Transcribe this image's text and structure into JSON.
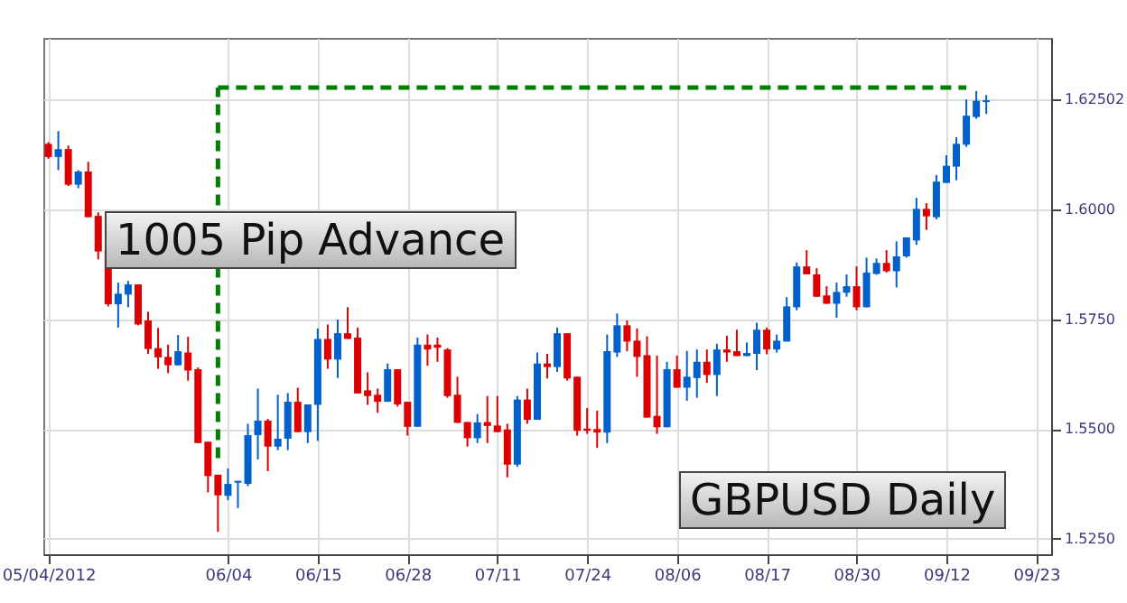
{
  "chart_data": {
    "type": "candlestick",
    "categories": [
      "05/04/2012",
      null,
      null,
      null,
      null,
      null,
      null,
      null,
      null,
      null,
      null,
      null,
      null,
      null,
      null,
      null,
      null,
      null,
      "06/04",
      null,
      null,
      null,
      null,
      null,
      null,
      null,
      null,
      "06/15",
      null,
      null,
      null,
      null,
      null,
      null,
      null,
      null,
      "06/28",
      null,
      null,
      null,
      null,
      null,
      null,
      null,
      null,
      "07/11",
      null,
      null,
      null,
      null,
      null,
      null,
      null,
      null,
      "07/24",
      null,
      null,
      null,
      null,
      null,
      null,
      null,
      null,
      "08/06",
      null,
      null,
      null,
      null,
      null,
      null,
      null,
      null,
      "08/17",
      null,
      null,
      null,
      null,
      null,
      null,
      null,
      null,
      "08/30",
      null,
      null,
      null,
      null,
      null,
      null,
      null,
      null,
      "09/12",
      null,
      null,
      null,
      null,
      null,
      null,
      null,
      null,
      "09/23",
      null
    ],
    "ohlc": [
      [
        1.6149,
        1.6153,
        1.6115,
        1.6119
      ],
      [
        1.6119,
        1.6178,
        1.6089,
        1.6137
      ],
      [
        1.6137,
        1.6145,
        1.6053,
        1.6056
      ],
      [
        1.6056,
        1.6089,
        1.6048,
        1.6086
      ],
      [
        1.6086,
        1.6108,
        1.5982,
        1.5982
      ],
      [
        1.5985,
        1.5993,
        1.5886,
        1.5904
      ],
      [
        1.5907,
        1.5907,
        1.5779,
        1.5784
      ],
      [
        1.5784,
        1.5833,
        1.5731,
        1.5808
      ],
      [
        1.5806,
        1.5837,
        1.5777,
        1.5829
      ],
      [
        1.5829,
        1.5829,
        1.5736,
        1.5738
      ],
      [
        1.5747,
        1.5767,
        1.5671,
        1.5682
      ],
      [
        1.5684,
        1.573,
        1.5637,
        1.5663
      ],
      [
        1.5664,
        1.5692,
        1.5627,
        1.5645
      ],
      [
        1.5645,
        1.5714,
        1.5645,
        1.5677
      ],
      [
        1.5674,
        1.571,
        1.561,
        1.5633
      ],
      [
        1.5636,
        1.564,
        1.5468,
        1.5468
      ],
      [
        1.5471,
        1.5471,
        1.5356,
        1.5393
      ],
      [
        1.5396,
        1.5396,
        1.5266,
        1.5349
      ],
      [
        1.5348,
        1.541,
        1.5338,
        1.5375
      ],
      [
        1.5378,
        1.5382,
        1.532,
        1.5382
      ],
      [
        1.5375,
        1.5512,
        1.537,
        1.5486
      ],
      [
        1.5486,
        1.5592,
        1.5431,
        1.5519
      ],
      [
        1.5519,
        1.5523,
        1.5404,
        1.546
      ],
      [
        1.546,
        1.5578,
        1.5452,
        1.5478
      ],
      [
        1.5478,
        1.5582,
        1.5452,
        1.5562
      ],
      [
        1.5562,
        1.5594,
        1.5493,
        1.5493
      ],
      [
        1.5493,
        1.5556,
        1.5468,
        1.5556
      ],
      [
        1.5555,
        1.5729,
        1.5473,
        1.5705
      ],
      [
        1.5705,
        1.5738,
        1.5637,
        1.5658
      ],
      [
        1.5658,
        1.5749,
        1.5616,
        1.5718
      ],
      [
        1.5718,
        1.5777,
        1.5705,
        1.5705
      ],
      [
        1.5708,
        1.5731,
        1.5581,
        1.5581
      ],
      [
        1.5588,
        1.5629,
        1.5555,
        1.5575
      ],
      [
        1.5578,
        1.5592,
        1.5537,
        1.5562
      ],
      [
        1.5562,
        1.5649,
        1.5562,
        1.5636
      ],
      [
        1.5636,
        1.5636,
        1.5551,
        1.5556
      ],
      [
        1.5562,
        1.5562,
        1.5485,
        1.5505
      ],
      [
        1.5505,
        1.5708,
        1.5505,
        1.5692
      ],
      [
        1.5692,
        1.5715,
        1.5644,
        1.5681
      ],
      [
        1.5692,
        1.5708,
        1.5653,
        1.5685
      ],
      [
        1.5681,
        1.5684,
        1.5571,
        1.5575
      ],
      [
        1.5578,
        1.5619,
        1.5514,
        1.5514
      ],
      [
        1.5516,
        1.5516,
        1.546,
        1.5479
      ],
      [
        1.5479,
        1.5534,
        1.5468,
        1.5515
      ],
      [
        1.5516,
        1.5575,
        1.5468,
        1.5507
      ],
      [
        1.5508,
        1.5575,
        1.5493,
        1.5493
      ],
      [
        1.5499,
        1.5512,
        1.539,
        1.5419
      ],
      [
        1.5419,
        1.5575,
        1.5414,
        1.5567
      ],
      [
        1.5567,
        1.5592,
        1.5512,
        1.5521
      ],
      [
        1.5521,
        1.5674,
        1.5521,
        1.5649
      ],
      [
        1.5649,
        1.5671,
        1.5615,
        1.5641
      ],
      [
        1.5641,
        1.5731,
        1.563,
        1.5718
      ],
      [
        1.5718,
        1.5718,
        1.561,
        1.5615
      ],
      [
        1.5619,
        1.5619,
        1.5485,
        1.5496
      ],
      [
        1.5501,
        1.5548,
        1.5489,
        1.5496
      ],
      [
        1.55,
        1.5542,
        1.5457,
        1.5492
      ],
      [
        1.5492,
        1.5715,
        1.5468,
        1.5677
      ],
      [
        1.5674,
        1.5763,
        1.5664,
        1.5736
      ],
      [
        1.5736,
        1.5747,
        1.5677,
        1.5699
      ],
      [
        1.5701,
        1.5729,
        1.5619,
        1.5664
      ],
      [
        1.5668,
        1.5711,
        1.5526,
        1.5526
      ],
      [
        1.553,
        1.5667,
        1.5489,
        1.5504
      ],
      [
        1.5504,
        1.5653,
        1.5504,
        1.5636
      ],
      [
        1.5636,
        1.5667,
        1.5594,
        1.5594
      ],
      [
        1.5594,
        1.5678,
        1.5564,
        1.5619
      ],
      [
        1.5616,
        1.5681,
        1.5571,
        1.5653
      ],
      [
        1.5653,
        1.5681,
        1.5605,
        1.5623
      ],
      [
        1.5623,
        1.5694,
        1.5575,
        1.5681
      ],
      [
        1.5681,
        1.5712,
        1.5653,
        1.5674
      ],
      [
        1.5677,
        1.5726,
        1.5666,
        1.5666
      ],
      [
        1.5666,
        1.5697,
        1.5666,
        1.5673
      ],
      [
        1.5671,
        1.5742,
        1.5634,
        1.5726
      ],
      [
        1.5726,
        1.5731,
        1.567,
        1.5681
      ],
      [
        1.5681,
        1.5715,
        1.5674,
        1.5701
      ],
      [
        1.5699,
        1.58,
        1.5699,
        1.5779
      ],
      [
        1.5777,
        1.5879,
        1.577,
        1.587
      ],
      [
        1.587,
        1.5907,
        1.5852,
        1.5852
      ],
      [
        1.5852,
        1.5866,
        1.5801,
        1.5801
      ],
      [
        1.5804,
        1.5825,
        1.5785,
        1.5785
      ],
      [
        1.5785,
        1.5833,
        1.5753,
        1.5812
      ],
      [
        1.581,
        1.5852,
        1.5801,
        1.5825
      ],
      [
        1.5825,
        1.587,
        1.577,
        1.5777
      ],
      [
        1.5777,
        1.589,
        1.5777,
        1.5856
      ],
      [
        1.5853,
        1.5888,
        1.5851,
        1.5878
      ],
      [
        1.5878,
        1.5907,
        1.5856,
        1.5859
      ],
      [
        1.5859,
        1.5927,
        1.5822,
        1.5893
      ],
      [
        1.5893,
        1.5936,
        1.589,
        1.5936
      ],
      [
        1.5929,
        1.6026,
        1.5919,
        1.6001
      ],
      [
        1.6001,
        1.6014,
        1.5953,
        1.5984
      ],
      [
        1.5982,
        1.6078,
        1.5977,
        1.6063
      ],
      [
        1.606,
        1.6123,
        1.606,
        1.6099
      ],
      [
        1.6097,
        1.6164,
        1.6066,
        1.6149
      ],
      [
        1.6147,
        1.625,
        1.6142,
        1.6213
      ],
      [
        1.621,
        1.6269,
        1.6206,
        1.6247
      ],
      [
        1.6244,
        1.626,
        1.6217,
        1.6248
      ],
      null,
      null,
      null,
      null,
      null,
      null
    ],
    "colors": [
      "#dd0000",
      "#0060cc",
      "#dd0000",
      "#0060cc",
      "#dd0000",
      "#dd0000",
      "#dd0000",
      "#0060cc",
      "#0060cc",
      "#dd0000",
      "#dd0000",
      "#dd0000",
      "#dd0000",
      "#0060cc",
      "#dd0000",
      "#dd0000",
      "#dd0000",
      "#dd0000",
      "#0060cc",
      "#0060cc",
      "#0060cc",
      "#0060cc",
      "#dd0000",
      "#0060cc",
      "#0060cc",
      "#dd0000",
      "#0060cc",
      "#0060cc",
      "#dd0000",
      "#0060cc",
      "#dd0000",
      "#dd0000",
      "#dd0000",
      "#dd0000",
      "#0060cc",
      "#dd0000",
      "#dd0000",
      "#0060cc",
      "#dd0000",
      "#dd0000",
      "#dd0000",
      "#dd0000",
      "#dd0000",
      "#0060cc",
      "#dd0000",
      "#dd0000",
      "#dd0000",
      "#0060cc",
      "#dd0000",
      "#0060cc",
      "#dd0000",
      "#0060cc",
      "#dd0000",
      "#dd0000",
      "#dd0000",
      "#dd0000",
      "#0060cc",
      "#0060cc",
      "#dd0000",
      "#dd0000",
      "#dd0000",
      "#dd0000",
      "#0060cc",
      "#dd0000",
      "#0060cc",
      "#0060cc",
      "#dd0000",
      "#0060cc",
      "#dd0000",
      "#dd0000",
      "#0060cc",
      "#0060cc",
      "#dd0000",
      "#0060cc",
      "#0060cc",
      "#0060cc",
      "#dd0000",
      "#dd0000",
      "#dd0000",
      "#0060cc",
      "#0060cc",
      "#dd0000",
      "#0060cc",
      "#0060cc",
      "#dd0000",
      "#0060cc",
      "#0060cc",
      "#0060cc",
      "#dd0000",
      "#0060cc",
      "#0060cc",
      "#0060cc",
      "#0060cc",
      "#0060cc",
      "#0060cc",
      null,
      null,
      null,
      null,
      null,
      null
    ],
    "series": [
      {
        "type": "line",
        "color": "#008000",
        "line_style": "dashed",
        "values": [
          null,
          null,
          null,
          null,
          null,
          null,
          null,
          null,
          null,
          null,
          null,
          null,
          null,
          null,
          null,
          null,
          null,
          1.6277,
          1.6277,
          1.6277,
          1.6277,
          1.6277,
          1.6277,
          1.6277,
          1.6277,
          1.6277,
          1.6277,
          1.6277,
          1.6277,
          1.6277,
          1.6277,
          1.6277,
          1.6277,
          1.6277,
          1.6277,
          1.6277,
          1.6277,
          1.6277,
          1.6277,
          1.6277,
          1.6277,
          1.6277,
          1.6277,
          1.6277,
          1.6277,
          1.6277,
          1.6277,
          1.6277,
          1.6277,
          1.6277,
          1.6277,
          1.6277,
          1.6277,
          1.6277,
          1.6277,
          1.6277,
          1.6277,
          1.6277,
          1.6277,
          1.6277,
          1.6277,
          1.6277,
          1.6277,
          1.6277,
          1.6277,
          1.6277,
          1.6277,
          1.6277,
          1.6277,
          1.6277,
          1.6277,
          1.6277,
          1.6277,
          1.6277,
          1.6277,
          1.6277,
          1.6277,
          1.6277,
          1.6277,
          1.6277,
          1.6277,
          1.6277,
          1.6277,
          1.6277,
          1.6277,
          1.6277,
          1.6277,
          1.6277,
          1.6277,
          1.6277,
          1.6277,
          1.6277,
          1.6277,
          null,
          null,
          null,
          null,
          null,
          null,
          null,
          null
        ],
        "errors": [
          null,
          null,
          null,
          null,
          null,
          null,
          null,
          null,
          null,
          null,
          null,
          null,
          null,
          null,
          null,
          null,
          null,
          [
            1.5434,
            1.6277
          ],
          null,
          null,
          null,
          null,
          null,
          null,
          null,
          null,
          null,
          null,
          null,
          null,
          null,
          null,
          null,
          null,
          null,
          null,
          null,
          null,
          null,
          null,
          null,
          null,
          null,
          null,
          null,
          null,
          null,
          null,
          null,
          null,
          null,
          null,
          null,
          null,
          null,
          null,
          null,
          null,
          null,
          null,
          null,
          null,
          null,
          null,
          null,
          null,
          null,
          null,
          null,
          null,
          null,
          null,
          null,
          null,
          null,
          null,
          null,
          null,
          null,
          null,
          null,
          null,
          null,
          null,
          null,
          null,
          null,
          null,
          null,
          null,
          null,
          null,
          null,
          null,
          null,
          null,
          null,
          null,
          null,
          null,
          null
        ]
      }
    ],
    "ylim": [
      1.5215,
      1.639
    ],
    "yticks": [
      {
        "value": 1.525,
        "label": "1.5250"
      },
      {
        "value": 1.55,
        "label": "1.5500"
      },
      {
        "value": 1.575,
        "label": "1.5750"
      },
      {
        "value": 1.6,
        "label": "1.6000"
      },
      1.62502
    ],
    "grid": true,
    "annotations": [
      "1005 Pip Advance",
      "GBPUSD Daily"
    ]
  }
}
